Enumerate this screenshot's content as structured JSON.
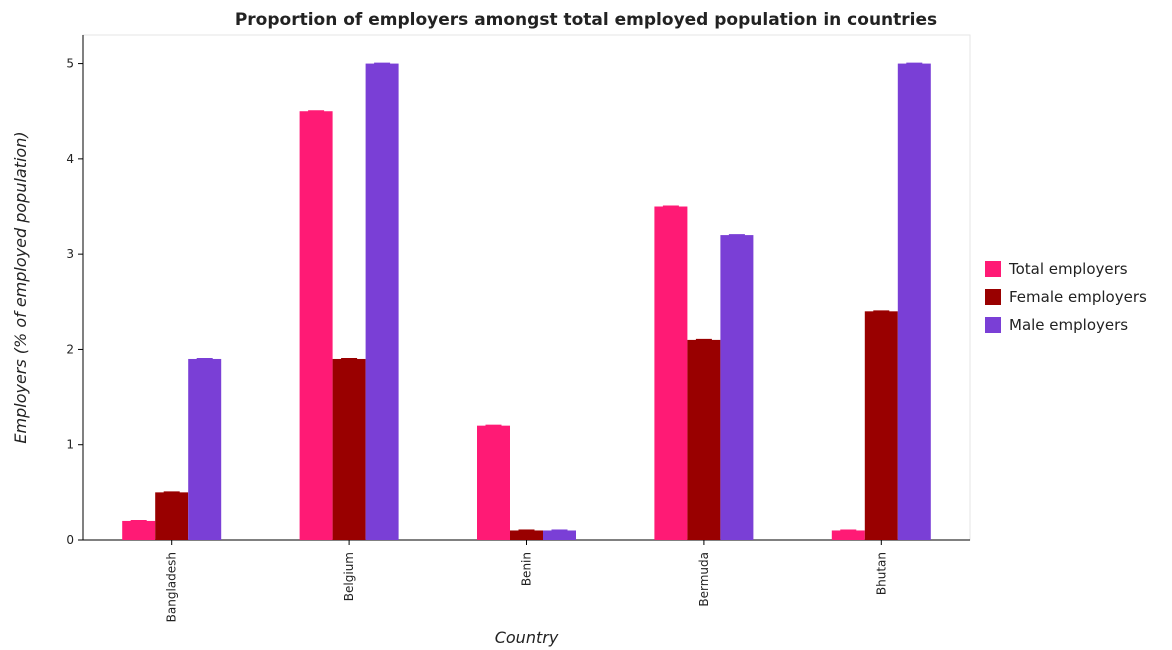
{
  "chart_data": {
    "type": "bar",
    "title": "Proportion of employers amongst total employed population in countries",
    "xlabel": "Country",
    "ylabel": "Employers (% of employed population)",
    "categories": [
      "Bangladesh",
      "Belgium",
      "Benin",
      "Bermuda",
      "Bhutan"
    ],
    "ylim": [
      0,
      5.3
    ],
    "yticks": [
      0,
      1,
      2,
      3,
      4,
      5
    ],
    "series": [
      {
        "name": "Total employers",
        "color": "#ff1a75",
        "values": [
          0.2,
          4.5,
          1.2,
          3.5,
          0.1
        ]
      },
      {
        "name": "Female employers",
        "color": "#990000",
        "values": [
          0.5,
          1.9,
          0.1,
          2.1,
          2.4
        ]
      },
      {
        "name": "Male employers",
        "color": "#7a3fd6",
        "values": [
          1.9,
          5.0,
          0.1,
          3.2,
          5.0
        ]
      }
    ],
    "legend_position": "right"
  }
}
